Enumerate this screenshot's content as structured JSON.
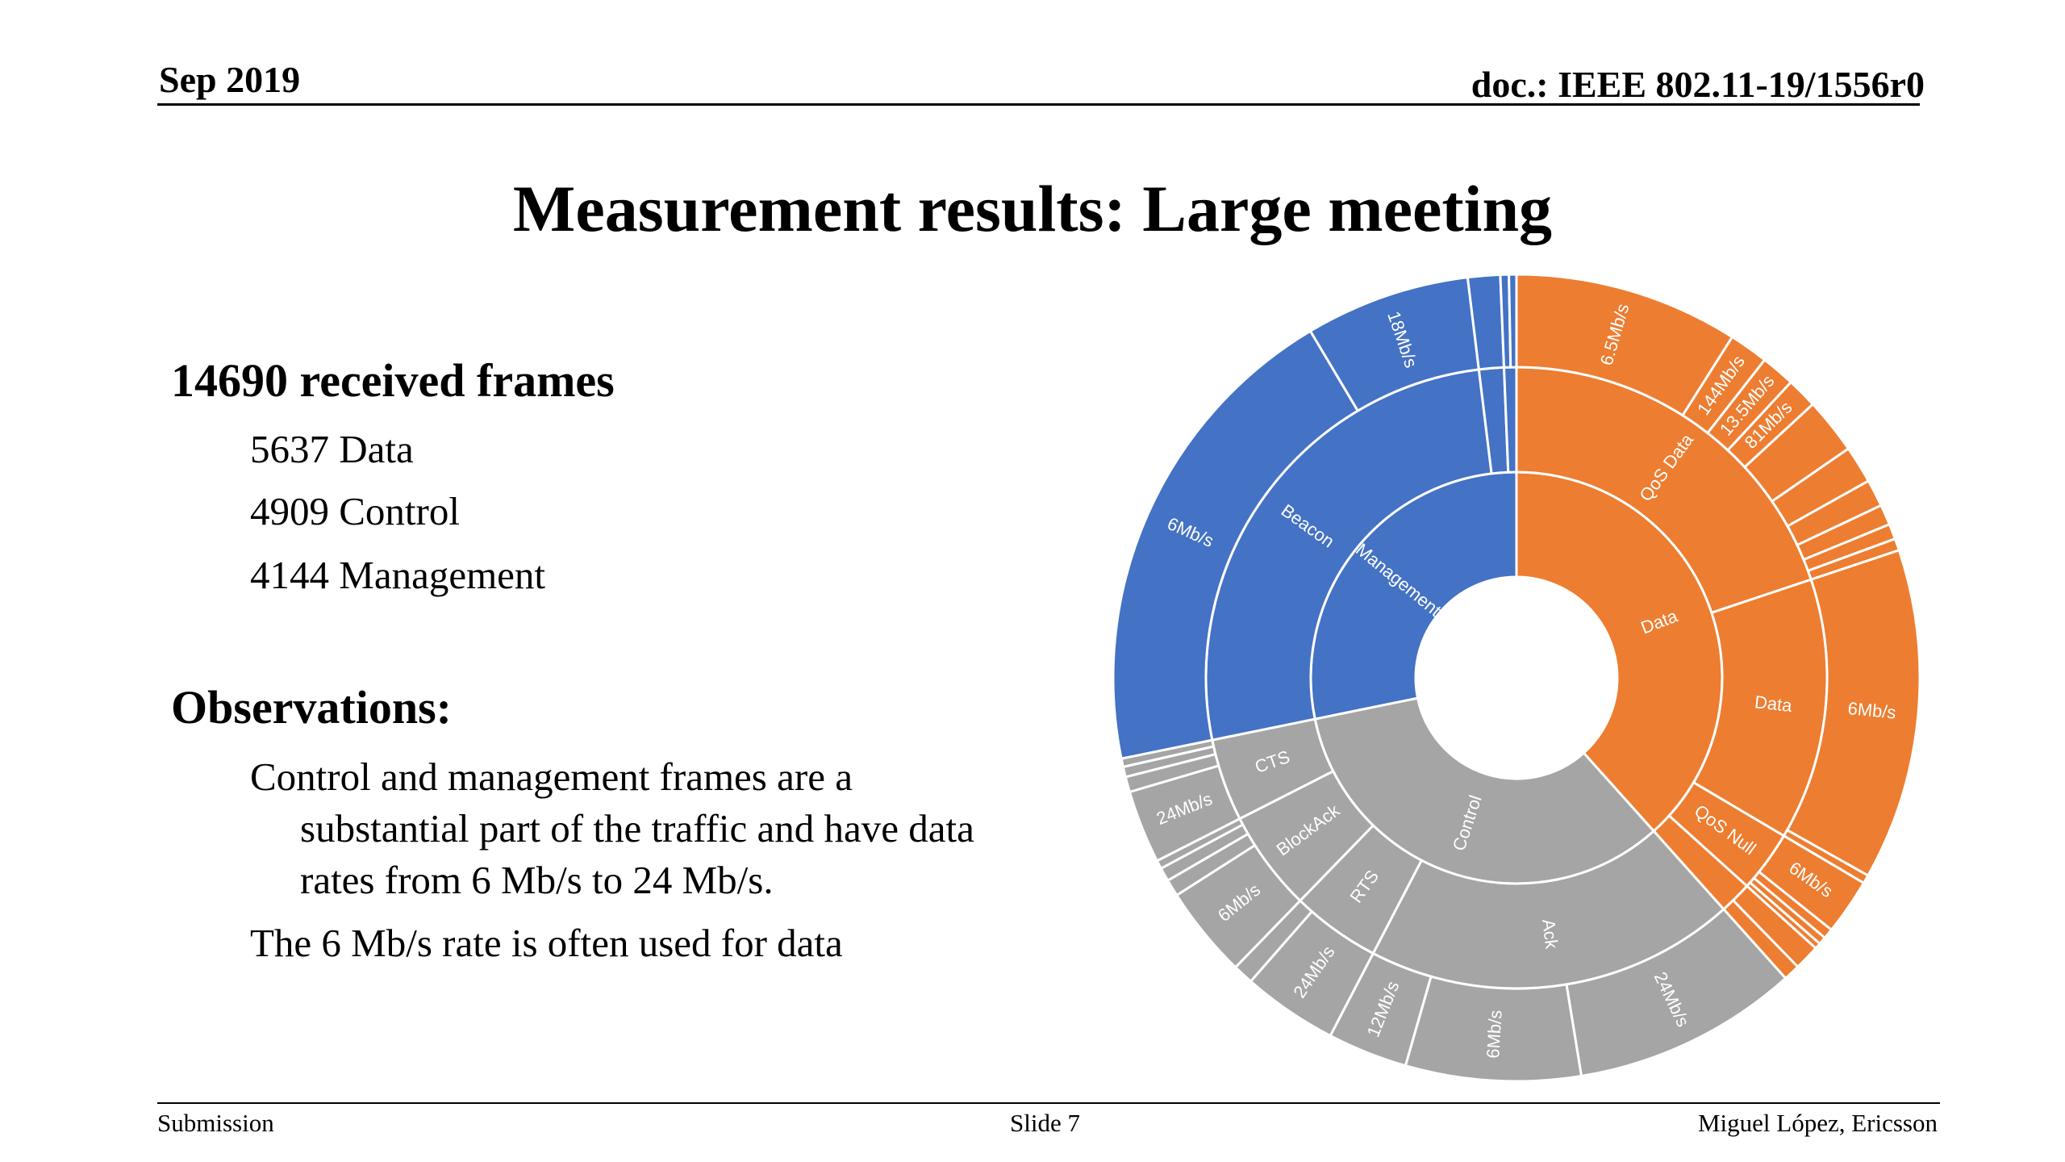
{
  "header": {
    "date": "Sep 2019",
    "doc": "doc.: IEEE 802.11-19/1556r0"
  },
  "title": "Measurement results: Large meeting",
  "left": {
    "received_heading": "14690 received frames",
    "counts": [
      "5637 Data",
      "4909 Control",
      "4144 Management"
    ],
    "observations_heading": "Observations:",
    "obs1_lines": [
      "Control and management frames are a",
      "substantial part of the traffic and have data",
      "rates from 6 Mb/s to 24 Mb/s."
    ],
    "obs2": "The 6 Mb/s rate is often used for data"
  },
  "footer": {
    "left": "Submission",
    "center": "Slide 7",
    "right": "Miguel López, Ericsson"
  },
  "chart_data": {
    "type": "sunburst",
    "colors": {
      "Data": "#ED7D31",
      "Control": "#A5A5A5",
      "Management": "#4472C4"
    },
    "root": [
      {
        "name": "Data",
        "value": 5637,
        "children": [
          {
            "name": "QoS Data",
            "value": 2920,
            "children": [
              {
                "name": "6.5Mb/s",
                "value": 1320
              },
              {
                "name": "144Mb/s",
                "value": 230
              },
              {
                "name": "13.5Mb/s",
                "value": 200
              },
              {
                "name": "81Mb/s",
                "value": 180
              },
              {
                "name": "",
                "value": 330
              },
              {
                "name": "",
                "value": 220
              },
              {
                "name": "",
                "value": 160
              },
              {
                "name": "",
                "value": 120
              },
              {
                "name": "",
                "value": 90
              },
              {
                "name": "",
                "value": 70
              }
            ]
          },
          {
            "name": "Data",
            "value": 2000,
            "children": [
              {
                "name": "6Mb/s",
                "value": 1950
              },
              {
                "name": "",
                "value": 50
              }
            ]
          },
          {
            "name": "QoS Null",
            "value": 470,
            "children": [
              {
                "name": "6Mb/s",
                "value": 330
              },
              {
                "name": "",
                "value": 60
              },
              {
                "name": "",
                "value": 45
              },
              {
                "name": "",
                "value": 35
              }
            ]
          },
          {
            "name": "",
            "value": 247,
            "children": [
              {
                "name": "",
                "value": 150
              },
              {
                "name": "",
                "value": 97
              }
            ]
          }
        ]
      },
      {
        "name": "Control",
        "value": 4909,
        "children": [
          {
            "name": "Ack",
            "value": 2830,
            "children": [
              {
                "name": "24Mb/s",
                "value": 1330
              },
              {
                "name": "6Mb/s",
                "value": 1030
              },
              {
                "name": "12Mb/s",
                "value": 470
              }
            ]
          },
          {
            "name": "RTS",
            "value": 680,
            "children": [
              {
                "name": "24Mb/s",
                "value": 560
              },
              {
                "name": "",
                "value": 120
              }
            ]
          },
          {
            "name": "BlockAck",
            "value": 770,
            "children": [
              {
                "name": "6Mb/s",
                "value": 540
              },
              {
                "name": "",
                "value": 100
              },
              {
                "name": "",
                "value": 80
              },
              {
                "name": "",
                "value": 50
              }
            ]
          },
          {
            "name": "CTS",
            "value": 629,
            "children": [
              {
                "name": "24Mb/s",
                "value": 430
              },
              {
                "name": "",
                "value": 90
              },
              {
                "name": "",
                "value": 60
              },
              {
                "name": "",
                "value": 49
              }
            ]
          }
        ]
      },
      {
        "name": "Management",
        "value": 4144,
        "children": [
          {
            "name": "Beacon",
            "value": 3860,
            "children": [
              {
                "name": "6Mb/s",
                "value": 2890
              },
              {
                "name": "18Mb/s",
                "value": 970
              }
            ]
          },
          {
            "name": "",
            "value": 190,
            "children": [
              {
                "name": "",
                "value": 190
              }
            ]
          },
          {
            "name": "",
            "value": 94,
            "children": [
              {
                "name": "",
                "value": 50
              },
              {
                "name": "",
                "value": 44
              }
            ]
          }
        ]
      }
    ]
  }
}
